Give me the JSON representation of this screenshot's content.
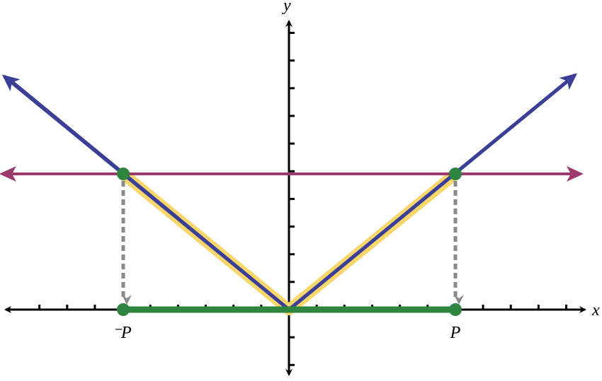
{
  "axes": {
    "x_label": "x",
    "y_label": "y"
  },
  "points": {
    "left_label": "⁻P",
    "right_label": "P"
  }
}
